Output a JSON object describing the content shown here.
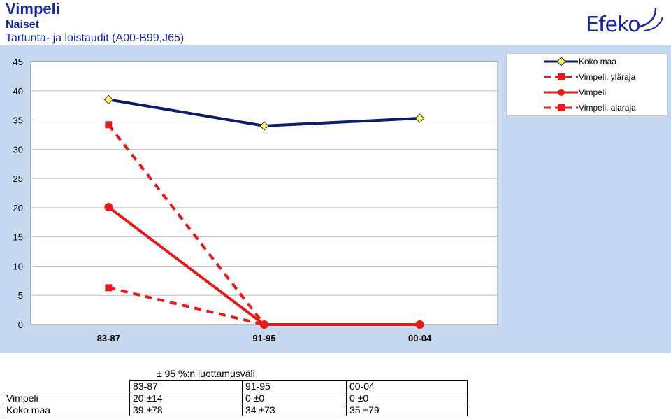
{
  "header": {
    "title": "Vimpeli",
    "subtitle": "Naiset",
    "description": "Tartunta- ja loistaudit (A00-B99,J65)"
  },
  "logo": {
    "text": "Efeko"
  },
  "colors": {
    "plot_bg": "#ffffff",
    "outer_bg": "#c6d9f1",
    "koko_maa": "#0f1a6b",
    "vimpeli": "#e41a1c",
    "marker_fill": "#ffff66"
  },
  "chart_data": {
    "type": "line",
    "categories": [
      "83-87",
      "91-95",
      "00-04"
    ],
    "ylim": [
      0,
      45
    ],
    "yticks": [
      0,
      5,
      10,
      15,
      20,
      25,
      30,
      35,
      40,
      45
    ],
    "grid": true,
    "legend_position": "top-right",
    "series": [
      {
        "name": "Koko maa",
        "values": [
          38.5,
          34,
          35.3
        ],
        "style": "solid-diamond"
      },
      {
        "name": "Vimpeli, yläraja",
        "values": [
          34.2,
          0,
          null
        ],
        "style": "dashed-square"
      },
      {
        "name": "Vimpeli",
        "values": [
          20.1,
          0,
          0
        ],
        "style": "solid-circle"
      },
      {
        "name": "Vimpeli, alaraja",
        "values": [
          6.3,
          0,
          null
        ],
        "style": "dashed-square"
      }
    ]
  },
  "table": {
    "caption": "± 95 %:n luottamusväli",
    "header": [
      "",
      "83-87",
      "91-95",
      "00-04"
    ],
    "rows": [
      [
        "Vimpeli",
        "20 ±14",
        "0 ±0",
        "0 ±0"
      ],
      [
        "Koko maa",
        "39 ±78",
        "34 ±73",
        "35 ±79"
      ]
    ]
  }
}
